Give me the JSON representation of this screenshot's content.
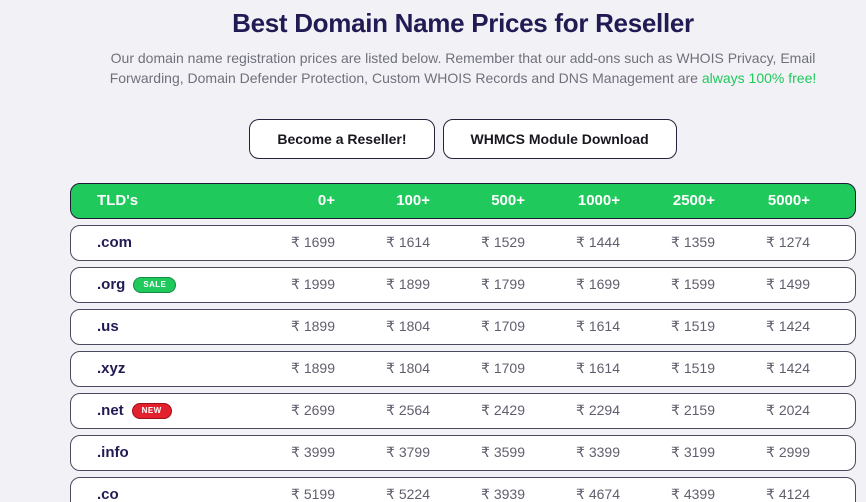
{
  "header": {
    "title": "Best Domain Name Prices for Reseller",
    "subtitle": "Our domain name registration prices are listed below. Remember that our add-ons such as WHOIS Privacy, Email Forwarding, Domain Defender Protection, Custom WHOIS Records and DNS Management are ",
    "subtitle_highlight": "always 100% free!"
  },
  "buttons": [
    {
      "label": "Become a Reseller!"
    },
    {
      "label": "WHMCS Module Download"
    }
  ],
  "colors": {
    "accent_green": "#1fc95c",
    "badge_red": "#e3202e",
    "title_navy": "#211b54",
    "page_background": "#f2f2f6"
  },
  "table": {
    "currency": "₹",
    "headers": [
      "TLD's",
      "0+",
      "100+",
      "500+",
      "1000+",
      "2500+",
      "5000+"
    ],
    "rows": [
      {
        "tld": ".com",
        "badge": "",
        "prices": [
          "₹ 1699",
          "₹ 1614",
          "₹ 1529",
          "₹ 1444",
          "₹ 1359",
          "₹ 1274"
        ]
      },
      {
        "tld": ".org",
        "badge": "SALE",
        "prices": [
          "₹ 1999",
          "₹ 1899",
          "₹ 1799",
          "₹ 1699",
          "₹ 1599",
          "₹ 1499"
        ]
      },
      {
        "tld": ".us",
        "badge": "",
        "prices": [
          "₹ 1899",
          "₹ 1804",
          "₹ 1709",
          "₹ 1614",
          "₹ 1519",
          "₹ 1424"
        ]
      },
      {
        "tld": ".xyz",
        "badge": "",
        "prices": [
          "₹ 1899",
          "₹ 1804",
          "₹ 1709",
          "₹ 1614",
          "₹ 1519",
          "₹ 1424"
        ]
      },
      {
        "tld": ".net",
        "badge": "NEW",
        "prices": [
          "₹ 2699",
          "₹ 2564",
          "₹ 2429",
          "₹ 2294",
          "₹ 2159",
          "₹ 2024"
        ]
      },
      {
        "tld": ".info",
        "badge": "",
        "prices": [
          "₹ 3999",
          "₹ 3799",
          "₹ 3599",
          "₹ 3399",
          "₹ 3199",
          "₹ 2999"
        ]
      },
      {
        "tld": ".co",
        "badge": "",
        "prices": [
          "₹ 5199",
          "₹ 5224",
          "₹ 3939",
          "₹ 4674",
          "₹ 4399",
          "₹ 4124"
        ]
      }
    ]
  }
}
